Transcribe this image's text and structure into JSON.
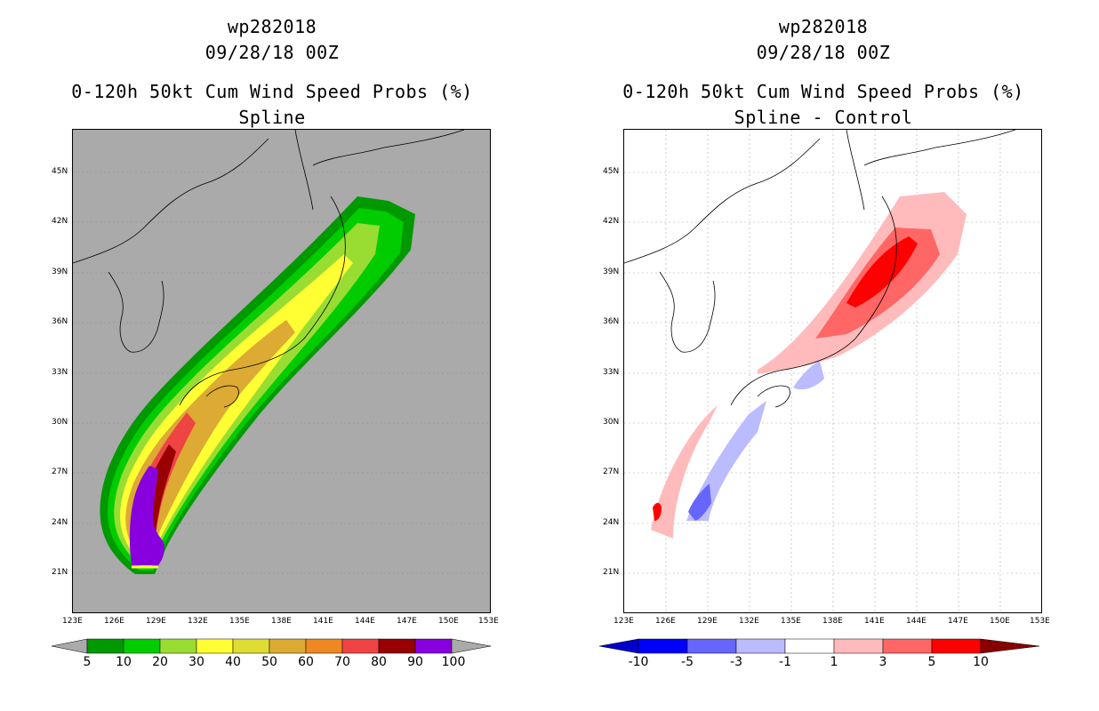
{
  "left_panel": {
    "title_line1": "wp282018",
    "title_line2": "09/28/18 00Z",
    "title_line3": "0-120h 50kt Cum Wind Speed Probs (%)",
    "title_line4": "Spline",
    "background_color": "#aaaaaa",
    "colorbar_labels": [
      "5",
      "10",
      "20",
      "30",
      "40",
      "50",
      "60",
      "70",
      "80",
      "90",
      "100"
    ],
    "colorbar_colors": [
      "#009900",
      "#00cc00",
      "#99dd33",
      "#ffff33",
      "#dddd33",
      "#ddaa33",
      "#ee8822",
      "#ee4444",
      "#990000",
      "#8800dd"
    ]
  },
  "right_panel": {
    "title_line1": "wp282018",
    "title_line2": "09/28/18 00Z",
    "title_line3": "0-120h 50kt Cum Wind Speed Probs (%)",
    "title_line4": "Spline - Control",
    "background_color": "#ffffff",
    "colorbar_labels": [
      "-10",
      "-5",
      "-3",
      "-1",
      "1",
      "3",
      "5",
      "10"
    ],
    "colorbar_colors": [
      "#0000cc",
      "#0000ff",
      "#6666ff",
      "#bbbbff",
      "#ffffff",
      "#ffbbbb",
      "#ff6666",
      "#ff0000",
      "#880000"
    ]
  },
  "axes": {
    "lon_labels": [
      "123E",
      "126E",
      "129E",
      "132E",
      "135E",
      "138E",
      "141E",
      "144E",
      "147E",
      "150E",
      "153E"
    ],
    "lat_labels": [
      "45N",
      "42N",
      "39N",
      "36N",
      "33N",
      "30N",
      "27N",
      "24N",
      "21N"
    ]
  }
}
